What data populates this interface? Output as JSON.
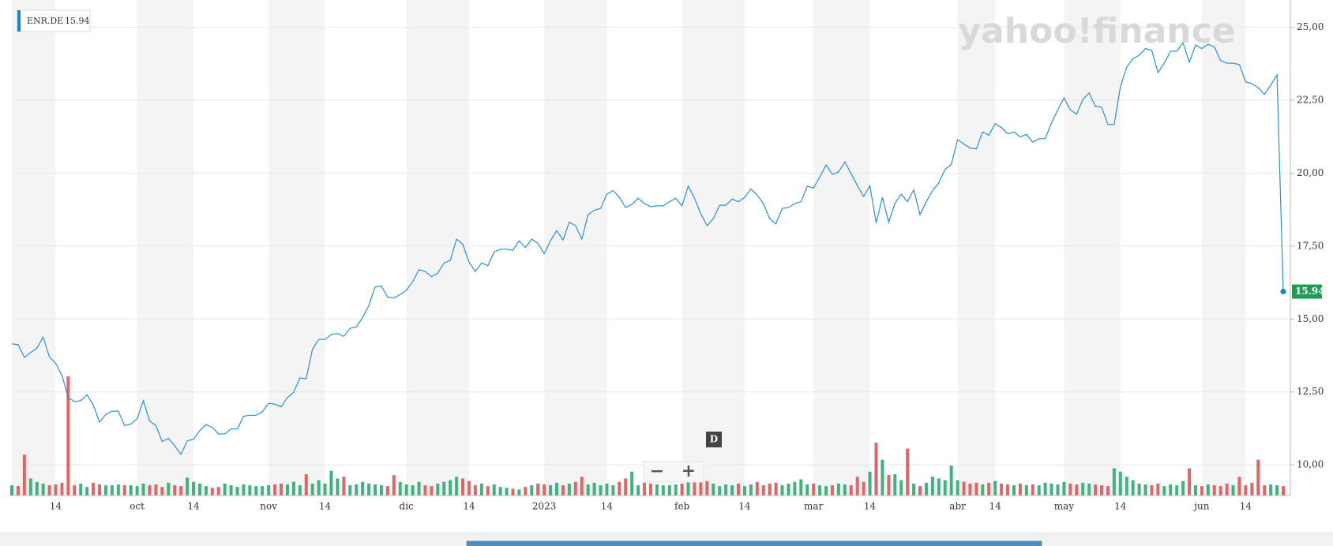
{
  "chart_data": {
    "type": "line",
    "watermark": "yahoo!finance",
    "categories": [
      null,
      null,
      null,
      null,
      null,
      null,
      null,
      "14",
      null,
      null,
      null,
      null,
      null,
      null,
      null,
      null,
      null,
      null,
      null,
      null,
      "oct",
      null,
      null,
      null,
      null,
      null,
      null,
      null,
      null,
      "14",
      null,
      null,
      null,
      null,
      null,
      null,
      null,
      null,
      null,
      null,
      null,
      "nov",
      null,
      null,
      null,
      null,
      null,
      null,
      null,
      null,
      "14",
      null,
      null,
      null,
      null,
      null,
      null,
      null,
      null,
      null,
      null,
      null,
      null,
      "dic",
      null,
      null,
      null,
      null,
      null,
      null,
      null,
      null,
      null,
      "14",
      null,
      null,
      null,
      null,
      null,
      null,
      null,
      null,
      null,
      null,
      null,
      "2023",
      null,
      null,
      null,
      null,
      null,
      null,
      null,
      null,
      null,
      "14",
      null,
      null,
      null,
      null,
      null,
      null,
      null,
      null,
      null,
      null,
      null,
      "feb",
      null,
      null,
      null,
      null,
      null,
      null,
      null,
      null,
      null,
      "14",
      null,
      null,
      null,
      null,
      null,
      null,
      null,
      null,
      null,
      null,
      "mar",
      null,
      null,
      null,
      null,
      null,
      null,
      null,
      null,
      "14",
      null,
      null,
      null,
      null,
      null,
      null,
      null,
      null,
      null,
      null,
      null,
      null,
      null,
      "abr",
      null,
      null,
      null,
      null,
      null,
      "14",
      null,
      null,
      null,
      null,
      null,
      null,
      null,
      null,
      null,
      null,
      "may",
      null,
      null,
      null,
      null,
      null,
      null,
      null,
      null,
      "14",
      null,
      null,
      null,
      null,
      null,
      null,
      null,
      null,
      null,
      null,
      null,
      null,
      "jun",
      null,
      null,
      null,
      null,
      null,
      null,
      "14",
      null,
      null,
      null,
      null,
      null,
      null
    ],
    "series": [
      {
        "name": "ENR.DE",
        "color": "#2b8fd6",
        "values": [
          14.15,
          14.12,
          13.68,
          13.85,
          14.0,
          14.38,
          13.7,
          13.48,
          13.07,
          12.31,
          12.17,
          12.2,
          12.4,
          12.05,
          11.47,
          11.73,
          11.84,
          11.84,
          11.35,
          11.4,
          11.58,
          12.2,
          11.5,
          11.35,
          10.8,
          10.91,
          10.65,
          10.36,
          10.82,
          10.88,
          11.17,
          11.38,
          11.29,
          11.06,
          11.06,
          11.23,
          11.23,
          11.67,
          11.7,
          11.7,
          11.82,
          12.11,
          12.08,
          11.99,
          12.31,
          12.49,
          12.98,
          12.95,
          13.97,
          14.3,
          14.3,
          14.47,
          14.5,
          14.41,
          14.68,
          14.73,
          15.05,
          15.46,
          16.1,
          16.13,
          15.75,
          15.72,
          15.84,
          15.99,
          16.28,
          16.69,
          16.63,
          16.45,
          16.57,
          16.92,
          17.01,
          17.74,
          17.56,
          16.95,
          16.63,
          16.92,
          16.83,
          17.3,
          17.39,
          17.39,
          17.36,
          17.68,
          17.45,
          17.74,
          17.59,
          17.24,
          17.68,
          18.03,
          17.71,
          18.32,
          18.2,
          17.74,
          18.58,
          18.73,
          18.79,
          19.28,
          19.4,
          19.17,
          18.82,
          18.93,
          19.14,
          18.96,
          18.85,
          18.88,
          18.88,
          19.02,
          19.14,
          18.88,
          19.55,
          19.14,
          18.61,
          18.2,
          18.44,
          18.9,
          18.9,
          19.11,
          19.02,
          19.17,
          19.46,
          19.25,
          18.96,
          18.44,
          18.26,
          18.79,
          18.82,
          18.96,
          19.02,
          19.55,
          19.49,
          19.87,
          20.28,
          19.96,
          20.04,
          20.39,
          19.98,
          19.57,
          19.2,
          19.57,
          18.29,
          19.17,
          18.32,
          18.96,
          19.28,
          19.02,
          19.43,
          18.58,
          19.02,
          19.4,
          19.66,
          20.13,
          20.3,
          21.15,
          21.0,
          20.86,
          20.83,
          21.41,
          21.3,
          21.7,
          21.56,
          21.35,
          21.41,
          21.24,
          21.33,
          21.06,
          21.18,
          21.18,
          21.73,
          22.17,
          22.58,
          22.17,
          22.02,
          22.52,
          22.75,
          22.29,
          22.26,
          21.67,
          21.67,
          22.96,
          23.63,
          23.92,
          24.04,
          24.27,
          24.21,
          23.45,
          23.77,
          24.18,
          24.18,
          24.47,
          23.8,
          24.39,
          24.27,
          24.42,
          24.33,
          23.86,
          23.77,
          23.77,
          23.72,
          23.13,
          23.07,
          22.93,
          22.7,
          23.02,
          23.37,
          15.94
        ]
      }
    ],
    "volume": {
      "up_color": "#3fb27f",
      "down_color": "#e36464",
      "values": [
        12,
        11,
        48,
        20,
        16,
        14,
        12,
        13,
        15,
        140,
        12,
        14,
        10,
        15,
        13,
        12,
        12,
        13,
        12,
        12,
        11,
        14,
        12,
        13,
        10,
        15,
        12,
        11,
        21,
        16,
        14,
        11,
        9,
        10,
        14,
        12,
        10,
        13,
        12,
        11,
        11,
        12,
        13,
        14,
        13,
        16,
        12,
        25,
        14,
        18,
        14,
        29,
        20,
        22,
        12,
        13,
        16,
        14,
        13,
        12,
        11,
        24,
        16,
        13,
        12,
        16,
        12,
        11,
        14,
        16,
        18,
        22,
        20,
        17,
        12,
        14,
        11,
        13,
        10,
        9,
        8,
        7,
        10,
        12,
        14,
        13,
        12,
        15,
        12,
        14,
        16,
        22,
        13,
        15,
        12,
        14,
        12,
        16,
        20,
        28,
        12,
        15,
        14,
        13,
        12,
        12,
        13,
        14,
        16,
        38,
        22,
        17,
        14,
        11,
        13,
        12,
        14,
        11,
        13,
        16,
        12,
        14,
        15,
        12,
        14,
        16,
        19,
        13,
        14,
        12,
        11,
        12,
        14,
        13,
        12,
        22,
        16,
        28,
        62,
        42,
        24,
        25,
        18,
        55,
        14,
        11,
        15,
        22,
        20,
        18,
        35,
        18,
        16,
        14,
        15,
        13,
        15,
        17,
        14,
        13,
        12,
        14,
        12,
        13,
        12,
        15,
        14,
        13,
        16,
        14,
        13,
        15,
        14,
        13,
        12,
        11,
        32,
        28,
        22,
        18,
        14,
        13,
        12,
        14,
        11,
        13,
        12,
        17,
        32,
        12,
        11,
        13,
        12,
        11,
        14,
        12,
        22,
        12,
        15,
        42,
        12,
        13,
        12,
        11
      ]
    },
    "ylim": [
      8.95,
      25.8
    ],
    "yticks": [
      {
        "value": 10,
        "label": "10,00"
      },
      {
        "value": 12.5,
        "label": "12,50"
      },
      {
        "value": 15,
        "label": "15,00"
      },
      {
        "value": 17.5,
        "label": "17,50"
      },
      {
        "value": 20,
        "label": "20,00"
      },
      {
        "value": 22.5,
        "label": "22,50"
      },
      {
        "value": 25,
        "label": "25,00"
      }
    ],
    "grid": true,
    "shading": "#f4f4f4",
    "tag_color": "#1f9d55"
  },
  "controls": {
    "zoom_out": "−",
    "zoom_in": "+",
    "marker": "D"
  }
}
